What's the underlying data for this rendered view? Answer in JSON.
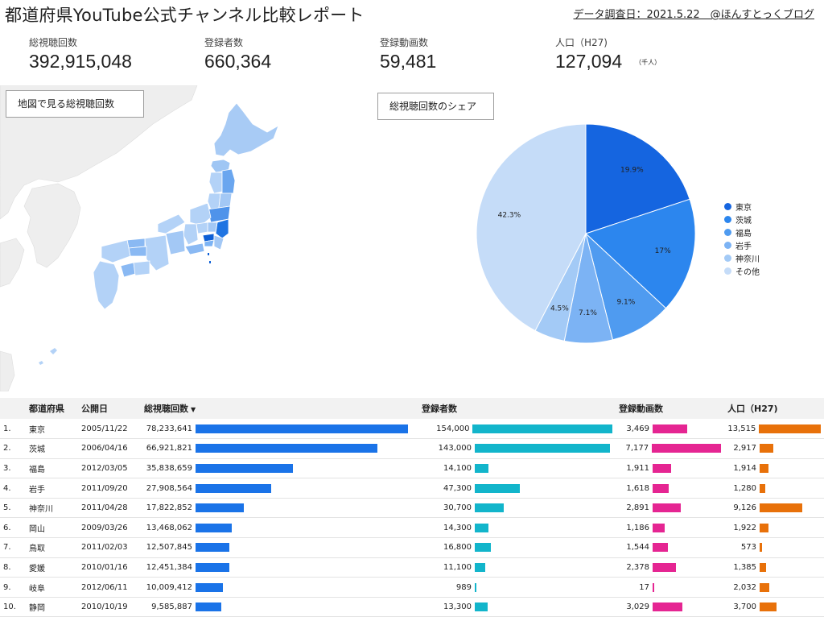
{
  "header": {
    "title": "都道府県YouTube公式チャンネル比較レポート",
    "survey_note": "データ調査日：2021.5.22　@ほんすとっくブログ"
  },
  "kpis": [
    {
      "label": "総視聴回数",
      "value": "392,915,048",
      "unit": ""
    },
    {
      "label": "登録者数",
      "value": "660,364",
      "unit": ""
    },
    {
      "label": "登録動画数",
      "value": "59,481",
      "unit": ""
    },
    {
      "label": "人口（H27)",
      "value": "127,094",
      "unit": "（千人）"
    }
  ],
  "map_section": {
    "label": "地図で見る総視聴回数"
  },
  "pie_section": {
    "label": "総視聴回数のシェア"
  },
  "colors": {
    "views_bar": "#1a73e8",
    "subscribers_bar": "#12b5cb",
    "videos_bar": "#e52592",
    "population_bar": "#e8710a",
    "sea": "#ffffff",
    "land_other": "#eeeeee"
  },
  "chart_data": [
    {
      "type": "pie",
      "slices": [
        {
          "label": "東京",
          "value": 19.9,
          "display": "19.9%",
          "color": "#1565e0"
        },
        {
          "label": "茨城",
          "value": 17.0,
          "display": "17%",
          "color": "#2c86ee"
        },
        {
          "label": "福島",
          "value": 9.1,
          "display": "9.1%",
          "color": "#4f9bf0"
        },
        {
          "label": "岩手",
          "value": 7.1,
          "display": "7.1%",
          "color": "#7cb3f4"
        },
        {
          "label": "神奈川",
          "value": 4.5,
          "display": "4.5%",
          "color": "#a3caf6"
        },
        {
          "label": "その他",
          "value": 42.3,
          "display": "42.3%",
          "color": "#c5dcf8"
        }
      ],
      "legend_position": "right"
    },
    {
      "type": "table",
      "columns": [
        "",
        "都道府県",
        "公開日",
        "総視聴回数",
        "登録者数",
        "登録動画数",
        "人口（H27)"
      ],
      "sort_indicator": "▼",
      "rows": [
        {
          "rank": "1.",
          "pref": "東京",
          "date": "2005/11/22",
          "views": 78233641,
          "views_text": "78,233,641",
          "subs": 154000,
          "subs_text": "154,000",
          "videos": 3469,
          "videos_text": "3,469",
          "pop": 13515,
          "pop_text": "13,515"
        },
        {
          "rank": "2.",
          "pref": "茨城",
          "date": "2006/04/16",
          "views": 66921821,
          "views_text": "66,921,821",
          "subs": 143000,
          "subs_text": "143,000",
          "videos": 7177,
          "videos_text": "7,177",
          "pop": 2917,
          "pop_text": "2,917"
        },
        {
          "rank": "3.",
          "pref": "福島",
          "date": "2012/03/05",
          "views": 35838659,
          "views_text": "35,838,659",
          "subs": 14100,
          "subs_text": "14,100",
          "videos": 1911,
          "videos_text": "1,911",
          "pop": 1914,
          "pop_text": "1,914"
        },
        {
          "rank": "4.",
          "pref": "岩手",
          "date": "2011/09/20",
          "views": 27908564,
          "views_text": "27,908,564",
          "subs": 47300,
          "subs_text": "47,300",
          "videos": 1618,
          "videos_text": "1,618",
          "pop": 1280,
          "pop_text": "1,280"
        },
        {
          "rank": "5.",
          "pref": "神奈川",
          "date": "2011/04/28",
          "views": 17822852,
          "views_text": "17,822,852",
          "subs": 30700,
          "subs_text": "30,700",
          "videos": 2891,
          "videos_text": "2,891",
          "pop": 9126,
          "pop_text": "9,126"
        },
        {
          "rank": "6.",
          "pref": "岡山",
          "date": "2009/03/26",
          "views": 13468062,
          "views_text": "13,468,062",
          "subs": 14300,
          "subs_text": "14,300",
          "videos": 1186,
          "videos_text": "1,186",
          "pop": 1922,
          "pop_text": "1,922"
        },
        {
          "rank": "7.",
          "pref": "鳥取",
          "date": "2011/02/03",
          "views": 12507845,
          "views_text": "12,507,845",
          "subs": 16800,
          "subs_text": "16,800",
          "videos": 1544,
          "videos_text": "1,544",
          "pop": 573,
          "pop_text": "573"
        },
        {
          "rank": "8.",
          "pref": "愛媛",
          "date": "2010/01/16",
          "views": 12451384,
          "views_text": "12,451,384",
          "subs": 11100,
          "subs_text": "11,100",
          "videos": 2378,
          "videos_text": "2,378",
          "pop": 1385,
          "pop_text": "1,385"
        },
        {
          "rank": "9.",
          "pref": "岐阜",
          "date": "2012/06/11",
          "views": 10009412,
          "views_text": "10,009,412",
          "subs": 989,
          "subs_text": "989",
          "videos": 17,
          "videos_text": "17",
          "pop": 2032,
          "pop_text": "2,032"
        },
        {
          "rank": "10.",
          "pref": "静岡",
          "date": "2010/10/19",
          "views": 9585887,
          "views_text": "9,585,887",
          "subs": 13300,
          "subs_text": "13,300",
          "videos": 3029,
          "videos_text": "3,029",
          "pop": 3700,
          "pop_text": "3,700"
        }
      ]
    }
  ]
}
